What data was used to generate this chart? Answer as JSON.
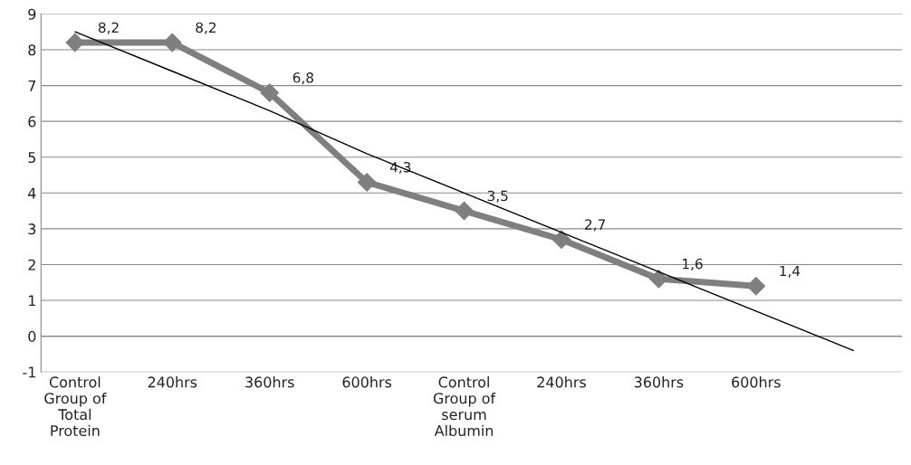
{
  "chart_data": {
    "type": "line",
    "categories": [
      "Control\nGroup of\nTotal\nProtein",
      "240hrs",
      "360hrs",
      "600hrs",
      "Control\nGroup of\nserum\nAlbumin",
      "240hrs",
      "360hrs",
      "600hrs",
      null
    ],
    "series": [
      {
        "color": "#7f7f7f",
        "marker": "diamond",
        "values": [
          8.2,
          8.2,
          6.8,
          4.3,
          3.5,
          2.7,
          1.6,
          1.4,
          null
        ],
        "value_labels": [
          "8,2",
          "8,2",
          "6,8",
          "4,3",
          "3,5",
          "2,7",
          "1,6",
          "1,4",
          null
        ]
      },
      {
        "color": "#000000",
        "marker": "none",
        "values": [
          8.5,
          7.4,
          6.3,
          5.1,
          4.0,
          2.9,
          1.8,
          0.7,
          -0.4
        ]
      }
    ],
    "ylim": [
      -1,
      9
    ],
    "yticks": [
      -1,
      0,
      1,
      2,
      3,
      4,
      5,
      6,
      7,
      8,
      9
    ],
    "grid": "y",
    "legend": false
  }
}
